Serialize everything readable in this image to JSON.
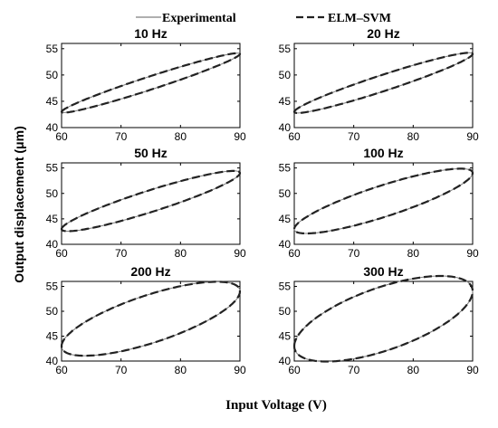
{
  "legend": {
    "experimental_label": "Experimental",
    "model_label": "ELM–SVM"
  },
  "axes": {
    "xlabel": "Input Voltage (V)",
    "ylabel": "Output displacement (μm)"
  },
  "colors": {
    "experimental": "#7f7f7f",
    "model": "#222222",
    "axis": "#000000"
  },
  "chart_data": [
    {
      "type": "line",
      "title": "10 Hz",
      "xlim": [
        60,
        90
      ],
      "ylim": [
        40,
        56
      ],
      "xticks": [
        60,
        70,
        80,
        90
      ],
      "yticks": [
        40,
        45,
        50,
        55
      ],
      "x_start": 60,
      "x_end": 90,
      "y_start": 43,
      "y_end": 54,
      "loop_width": 1.3,
      "grid": false,
      "series": [
        {
          "name": "Experimental"
        },
        {
          "name": "ELM–SVM"
        }
      ]
    },
    {
      "type": "line",
      "title": "20 Hz",
      "xlim": [
        60,
        90
      ],
      "ylim": [
        40,
        56
      ],
      "xticks": [
        60,
        70,
        80,
        90
      ],
      "yticks": [
        40,
        45,
        50,
        55
      ],
      "x_start": 60,
      "x_end": 90,
      "y_start": 43,
      "y_end": 54,
      "loop_width": 1.6,
      "grid": false,
      "series": [
        {
          "name": "Experimental"
        },
        {
          "name": "ELM–SVM"
        }
      ]
    },
    {
      "type": "line",
      "title": "50 Hz",
      "xlim": [
        60,
        90
      ],
      "ylim": [
        40,
        56
      ],
      "xticks": [
        60,
        70,
        80,
        90
      ],
      "yticks": [
        40,
        45,
        50,
        55
      ],
      "x_start": 60,
      "x_end": 90,
      "y_start": 43,
      "y_end": 54,
      "loop_width": 2.2,
      "grid": false,
      "series": [
        {
          "name": "Experimental"
        },
        {
          "name": "ELM–SVM"
        }
      ]
    },
    {
      "type": "line",
      "title": "100 Hz",
      "xlim": [
        60,
        90
      ],
      "ylim": [
        40,
        56
      ],
      "xticks": [
        60,
        70,
        80,
        90
      ],
      "yticks": [
        40,
        45,
        50,
        55
      ],
      "x_start": 60,
      "x_end": 90,
      "y_start": 43,
      "y_end": 54,
      "loop_width": 3.2,
      "grid": false,
      "series": [
        {
          "name": "Experimental"
        },
        {
          "name": "ELM–SVM"
        }
      ]
    },
    {
      "type": "line",
      "title": "200 Hz",
      "xlim": [
        60,
        90
      ],
      "ylim": [
        40,
        56
      ],
      "xticks": [
        60,
        70,
        80,
        90
      ],
      "yticks": [
        40,
        45,
        50,
        55
      ],
      "x_start": 60,
      "x_end": 90,
      "y_start": 43,
      "y_end": 54,
      "loop_width": 5.0,
      "grid": false,
      "series": [
        {
          "name": "Experimental"
        },
        {
          "name": "ELM–SVM"
        }
      ]
    },
    {
      "type": "line",
      "title": "300 Hz",
      "xlim": [
        60,
        90
      ],
      "ylim": [
        40,
        56
      ],
      "xticks": [
        60,
        70,
        80,
        90
      ],
      "yticks": [
        40,
        45,
        50,
        55
      ],
      "x_start": 60,
      "x_end": 90,
      "y_start": 43,
      "y_end": 54,
      "loop_width": 6.6,
      "grid": false,
      "series": [
        {
          "name": "Experimental"
        },
        {
          "name": "ELM–SVM"
        }
      ]
    }
  ]
}
